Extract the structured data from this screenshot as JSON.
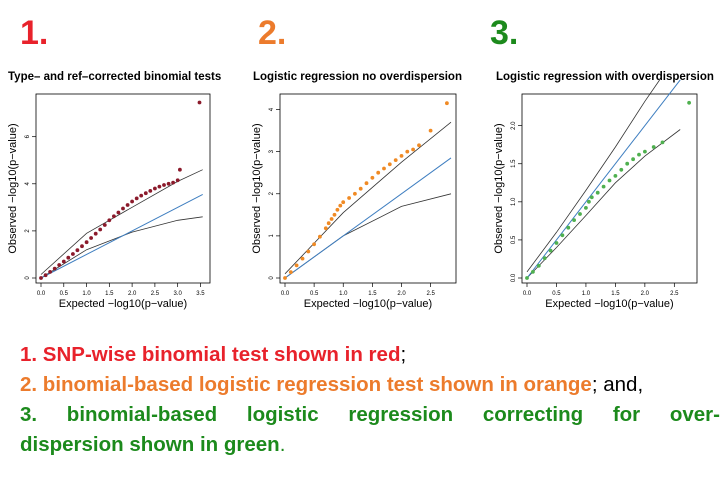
{
  "panel_numbers": [
    "1.",
    "2.",
    "3."
  ],
  "colors": {
    "red": "#e8222b",
    "orange": "#ec7b2c",
    "green": "#1c8a1c",
    "blue": "#3e7ec0",
    "dark_red": "#8b1a2b",
    "point_orange": "#f08a24",
    "point_green": "#4fb04f"
  },
  "caption": {
    "line1_colored": "1. SNP-wise binomial test shown in red",
    "line1_tail": ";",
    "line2_colored": "2. binomial-based logistic regression test shown in orange",
    "line2_tail": "; and,",
    "line3_colored": "3. binomial-based logistic regression correcting for over-",
    "line4_colored": "dispersion shown in green",
    "line4_tail": "."
  },
  "chart_data": [
    {
      "type": "scatter",
      "title": "Type– and ref–corrected binomial tests",
      "xlabel": "Expected −log10(p−value)",
      "ylabel": "Observed −log10(p−value)",
      "xlim": [
        0,
        3.6
      ],
      "ylim": [
        0,
        7.6
      ],
      "xticks": [
        0,
        0.5,
        1,
        1.5,
        2,
        2.5,
        3,
        3.5
      ],
      "xtick_labels": [
        "0.0",
        "0.5",
        "1.0",
        "1.5",
        "2.0",
        "2.5",
        "3.0",
        "3.5"
      ],
      "yticks": [
        0,
        2,
        4,
        6
      ],
      "ytick_labels": [
        "0",
        "2",
        "4",
        "6"
      ],
      "point_color": "#8b1a2b",
      "reference": {
        "x_max": 3.55,
        "y_at_x_max": 3.55
      },
      "band": {
        "upper": [
          [
            0,
            0.15
          ],
          [
            1,
            1.9
          ],
          [
            2,
            3.0
          ],
          [
            3,
            4.1
          ],
          [
            3.55,
            4.6
          ]
        ],
        "lower": [
          [
            0,
            0
          ],
          [
            1,
            1.2
          ],
          [
            2,
            1.95
          ],
          [
            3,
            2.45
          ],
          [
            3.55,
            2.6
          ]
        ]
      },
      "points": [
        [
          0.0,
          0.0
        ],
        [
          0.1,
          0.12
        ],
        [
          0.2,
          0.26
        ],
        [
          0.3,
          0.4
        ],
        [
          0.4,
          0.55
        ],
        [
          0.5,
          0.7
        ],
        [
          0.6,
          0.86
        ],
        [
          0.7,
          1.02
        ],
        [
          0.8,
          1.18
        ],
        [
          0.9,
          1.35
        ],
        [
          1.0,
          1.52
        ],
        [
          1.1,
          1.7
        ],
        [
          1.2,
          1.88
        ],
        [
          1.3,
          2.06
        ],
        [
          1.4,
          2.25
        ],
        [
          1.5,
          2.45
        ],
        [
          1.6,
          2.62
        ],
        [
          1.7,
          2.78
        ],
        [
          1.8,
          2.95
        ],
        [
          1.9,
          3.1
        ],
        [
          2.0,
          3.25
        ],
        [
          2.1,
          3.38
        ],
        [
          2.2,
          3.5
        ],
        [
          2.3,
          3.6
        ],
        [
          2.4,
          3.7
        ],
        [
          2.5,
          3.8
        ],
        [
          2.6,
          3.88
        ],
        [
          2.7,
          3.95
        ],
        [
          2.8,
          4.0
        ],
        [
          2.9,
          4.05
        ],
        [
          3.0,
          4.15
        ],
        [
          3.05,
          4.6
        ],
        [
          3.48,
          7.45
        ]
      ]
    },
    {
      "type": "scatter",
      "title": "Logistic regression no overdispersion",
      "xlabel": "Expected −log10(p−value)",
      "ylabel": "Observed −log10(p−value)",
      "xlim": [
        0,
        2.85
      ],
      "ylim": [
        0,
        4.25
      ],
      "xticks": [
        0,
        0.5,
        1,
        1.5,
        2,
        2.5
      ],
      "xtick_labels": [
        "0.0",
        "0.5",
        "1.0",
        "1.5",
        "2.0",
        "2.5"
      ],
      "yticks": [
        0,
        1,
        2,
        3,
        4
      ],
      "ytick_labels": [
        "0",
        "1",
        "2",
        "3",
        "4"
      ],
      "point_color": "#f08a24",
      "reference": {
        "x_max": 2.85,
        "y_at_x_max": 2.85
      },
      "band": {
        "upper": [
          [
            0,
            0.1
          ],
          [
            1,
            1.55
          ],
          [
            2,
            2.75
          ],
          [
            2.85,
            3.7
          ]
        ],
        "lower": [
          [
            0,
            0
          ],
          [
            1,
            1.0
          ],
          [
            2,
            1.7
          ],
          [
            2.85,
            2.0
          ]
        ]
      },
      "points": [
        [
          0.0,
          0.0
        ],
        [
          0.1,
          0.14
        ],
        [
          0.2,
          0.3
        ],
        [
          0.3,
          0.46
        ],
        [
          0.4,
          0.63
        ],
        [
          0.5,
          0.8
        ],
        [
          0.6,
          0.98
        ],
        [
          0.7,
          1.18
        ],
        [
          0.75,
          1.3
        ],
        [
          0.8,
          1.4
        ],
        [
          0.85,
          1.5
        ],
        [
          0.9,
          1.62
        ],
        [
          0.95,
          1.72
        ],
        [
          1.0,
          1.8
        ],
        [
          1.1,
          1.9
        ],
        [
          1.2,
          2.0
        ],
        [
          1.3,
          2.12
        ],
        [
          1.4,
          2.25
        ],
        [
          1.5,
          2.38
        ],
        [
          1.6,
          2.5
        ],
        [
          1.7,
          2.6
        ],
        [
          1.8,
          2.7
        ],
        [
          1.9,
          2.8
        ],
        [
          2.0,
          2.9
        ],
        [
          2.1,
          3.0
        ],
        [
          2.2,
          3.05
        ],
        [
          2.3,
          3.15
        ],
        [
          2.5,
          3.5
        ],
        [
          2.78,
          4.15
        ]
      ]
    },
    {
      "type": "scatter",
      "title": "Logistic regression with overdispersion",
      "xlabel": "Expected −log10(p−value)",
      "ylabel": "Observed −log10(p−value)",
      "xlim": [
        0,
        2.8
      ],
      "ylim": [
        0,
        2.35
      ],
      "xticks": [
        0,
        0.5,
        1,
        1.5,
        2,
        2.5
      ],
      "xtick_labels": [
        "0.0",
        "0.5",
        "1.0",
        "1.5",
        "2.0",
        "2.5"
      ],
      "yticks": [
        0,
        0.5,
        1,
        1.5,
        2
      ],
      "ytick_labels": [
        "0.0",
        "0.5",
        "1.0",
        "1.5",
        "2.0"
      ],
      "point_color": "#4fb04f",
      "reference": {
        "x_max": 2.6,
        "y_at_x_max": 2.6
      },
      "band": {
        "upper": [
          [
            0,
            0.08
          ],
          [
            0.5,
            0.6
          ],
          [
            1,
            1.15
          ],
          [
            1.5,
            1.72
          ],
          [
            2,
            2.32
          ],
          [
            2.25,
            2.6
          ]
        ],
        "lower": [
          [
            0,
            0
          ],
          [
            0.5,
            0.4
          ],
          [
            1,
            0.82
          ],
          [
            1.5,
            1.25
          ],
          [
            2,
            1.6
          ],
          [
            2.6,
            1.95
          ]
        ]
      },
      "points": [
        [
          0.0,
          0.0
        ],
        [
          0.1,
          0.08
        ],
        [
          0.2,
          0.16
        ],
        [
          0.3,
          0.26
        ],
        [
          0.4,
          0.36
        ],
        [
          0.5,
          0.46
        ],
        [
          0.6,
          0.56
        ],
        [
          0.7,
          0.66
        ],
        [
          0.8,
          0.76
        ],
        [
          0.9,
          0.84
        ],
        [
          1.0,
          0.92
        ],
        [
          1.05,
          1.0
        ],
        [
          1.1,
          1.06
        ],
        [
          1.2,
          1.12
        ],
        [
          1.3,
          1.2
        ],
        [
          1.4,
          1.28
        ],
        [
          1.5,
          1.34
        ],
        [
          1.6,
          1.42
        ],
        [
          1.7,
          1.5
        ],
        [
          1.8,
          1.56
        ],
        [
          1.9,
          1.62
        ],
        [
          2.0,
          1.66
        ],
        [
          2.15,
          1.72
        ],
        [
          2.3,
          1.78
        ],
        [
          2.75,
          2.3
        ]
      ]
    }
  ]
}
